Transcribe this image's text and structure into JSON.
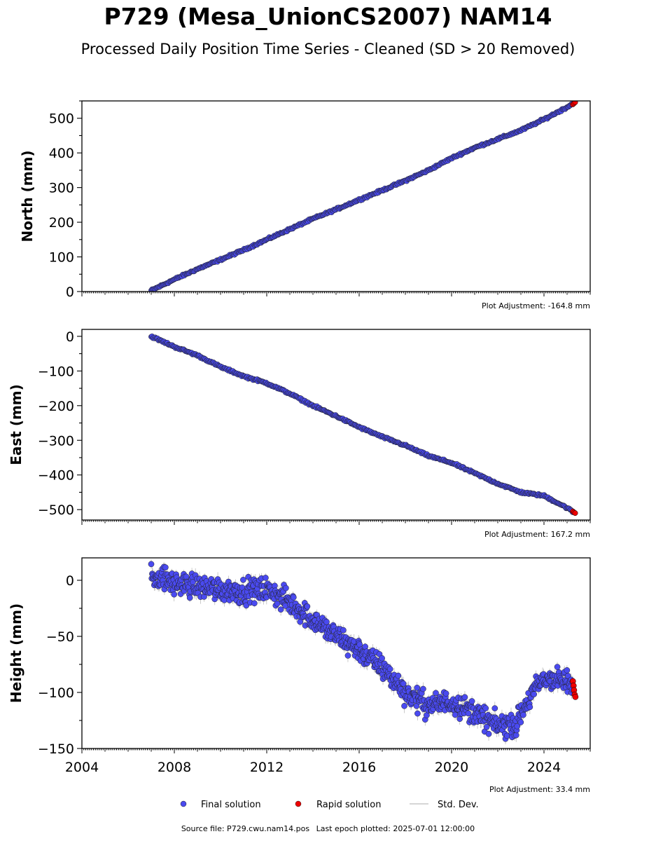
{
  "title": "P729 (Mesa_UnionCS2007) NAM14",
  "subtitle": "Processed Daily Position Time Series - Cleaned (SD > 20 Removed)",
  "footer": {
    "source": "Source file: P729.cwu.nam14.pos",
    "last_epoch": "Last epoch plotted: 2025-07-01 12:00:00"
  },
  "legend": {
    "placement": "bottom-center",
    "final": "Final solution",
    "rapid": "Rapid solution",
    "std": "Std. Dev."
  },
  "colors": {
    "final": "#4a4af0",
    "rapid": "#ee0000",
    "std": "#bdbdbd",
    "edge": "#222222"
  },
  "chart_data": [
    {
      "type": "scatter",
      "id": "north",
      "ylabel": "North (mm)",
      "xlim": [
        2004,
        2026
      ],
      "ylim": [
        0,
        550
      ],
      "yticks": [
        0,
        100,
        200,
        300,
        400,
        500
      ],
      "ytick_labels": [
        "0",
        "100",
        "200",
        "300",
        "400",
        "500"
      ],
      "adjustment": "Plot Adjustment: -164.8 mm",
      "x": [
        2007.0,
        2008.0,
        2009.0,
        2010.0,
        2011.0,
        2012.0,
        2013.0,
        2014.0,
        2015.0,
        2016.0,
        2017.0,
        2018.0,
        2019.0,
        2020.0,
        2021.0,
        2022.0,
        2023.0,
        2024.0,
        2025.0,
        2025.3
      ],
      "y": [
        3,
        35,
        65,
        92,
        120,
        150,
        180,
        210,
        237,
        265,
        292,
        320,
        350,
        385,
        415,
        440,
        465,
        497,
        532,
        545
      ],
      "scatter": 2.5,
      "rapid": {
        "x": [
          2025.25,
          2025.3,
          2025.35
        ],
        "y": [
          540,
          543,
          546
        ]
      }
    },
    {
      "type": "scatter",
      "id": "east",
      "ylabel": "East (mm)",
      "xlim": [
        2004,
        2026
      ],
      "ylim": [
        -530,
        20
      ],
      "yticks": [
        0,
        -100,
        -200,
        -300,
        -400,
        -500
      ],
      "ytick_labels": [
        "0",
        "−100",
        "−200",
        "−300",
        "−400",
        "−500"
      ],
      "adjustment": "Plot Adjustment: 167.2 mm",
      "x": [
        2007.0,
        2008.0,
        2009.0,
        2010.0,
        2011.0,
        2012.0,
        2013.0,
        2014.0,
        2015.0,
        2016.0,
        2017.0,
        2018.0,
        2019.0,
        2020.0,
        2021.0,
        2022.0,
        2023.0,
        2024.0,
        2025.0,
        2025.3
      ],
      "y": [
        0,
        -30,
        -55,
        -88,
        -115,
        -135,
        -165,
        -200,
        -230,
        -262,
        -290,
        -315,
        -345,
        -365,
        -395,
        -425,
        -450,
        -460,
        -495,
        -508
      ],
      "scatter": 2.5,
      "rapid": {
        "x": [
          2025.25,
          2025.3,
          2025.35
        ],
        "y": [
          -505,
          -508,
          -510
        ]
      }
    },
    {
      "type": "scatter",
      "id": "height",
      "ylabel": "Height (mm)",
      "xlim": [
        2004,
        2026
      ],
      "ylim": [
        -150,
        20
      ],
      "yticks": [
        0,
        -50,
        -100,
        -150
      ],
      "ytick_labels": [
        "0",
        "−50",
        "−100",
        "−150"
      ],
      "xticks": [
        2004,
        2008,
        2012,
        2016,
        2020,
        2024
      ],
      "xtick_labels": [
        "2004",
        "2008",
        "2012",
        "2016",
        "2020",
        "2024"
      ],
      "adjustment": "Plot Adjustment: 33.4 mm",
      "x": [
        2007.0,
        2007.5,
        2008.0,
        2009.0,
        2010.0,
        2011.0,
        2012.0,
        2013.0,
        2014.0,
        2015.0,
        2016.0,
        2017.0,
        2018.0,
        2019.0,
        2020.0,
        2021.0,
        2022.0,
        2022.8,
        2023.5,
        2024.0,
        2024.5,
        2025.0,
        2025.3
      ],
      "y": [
        5,
        2,
        -3,
        -5,
        -8,
        -10,
        -8,
        -20,
        -35,
        -50,
        -62,
        -78,
        -100,
        -112,
        -108,
        -118,
        -130,
        -128,
        -100,
        -88,
        -88,
        -92,
        -97
      ],
      "scatter": 9,
      "rapid": {
        "x": [
          2025.25,
          2025.28,
          2025.3,
          2025.33,
          2025.36
        ],
        "y": [
          -90,
          -94,
          -98,
          -102,
          -104
        ]
      }
    }
  ]
}
